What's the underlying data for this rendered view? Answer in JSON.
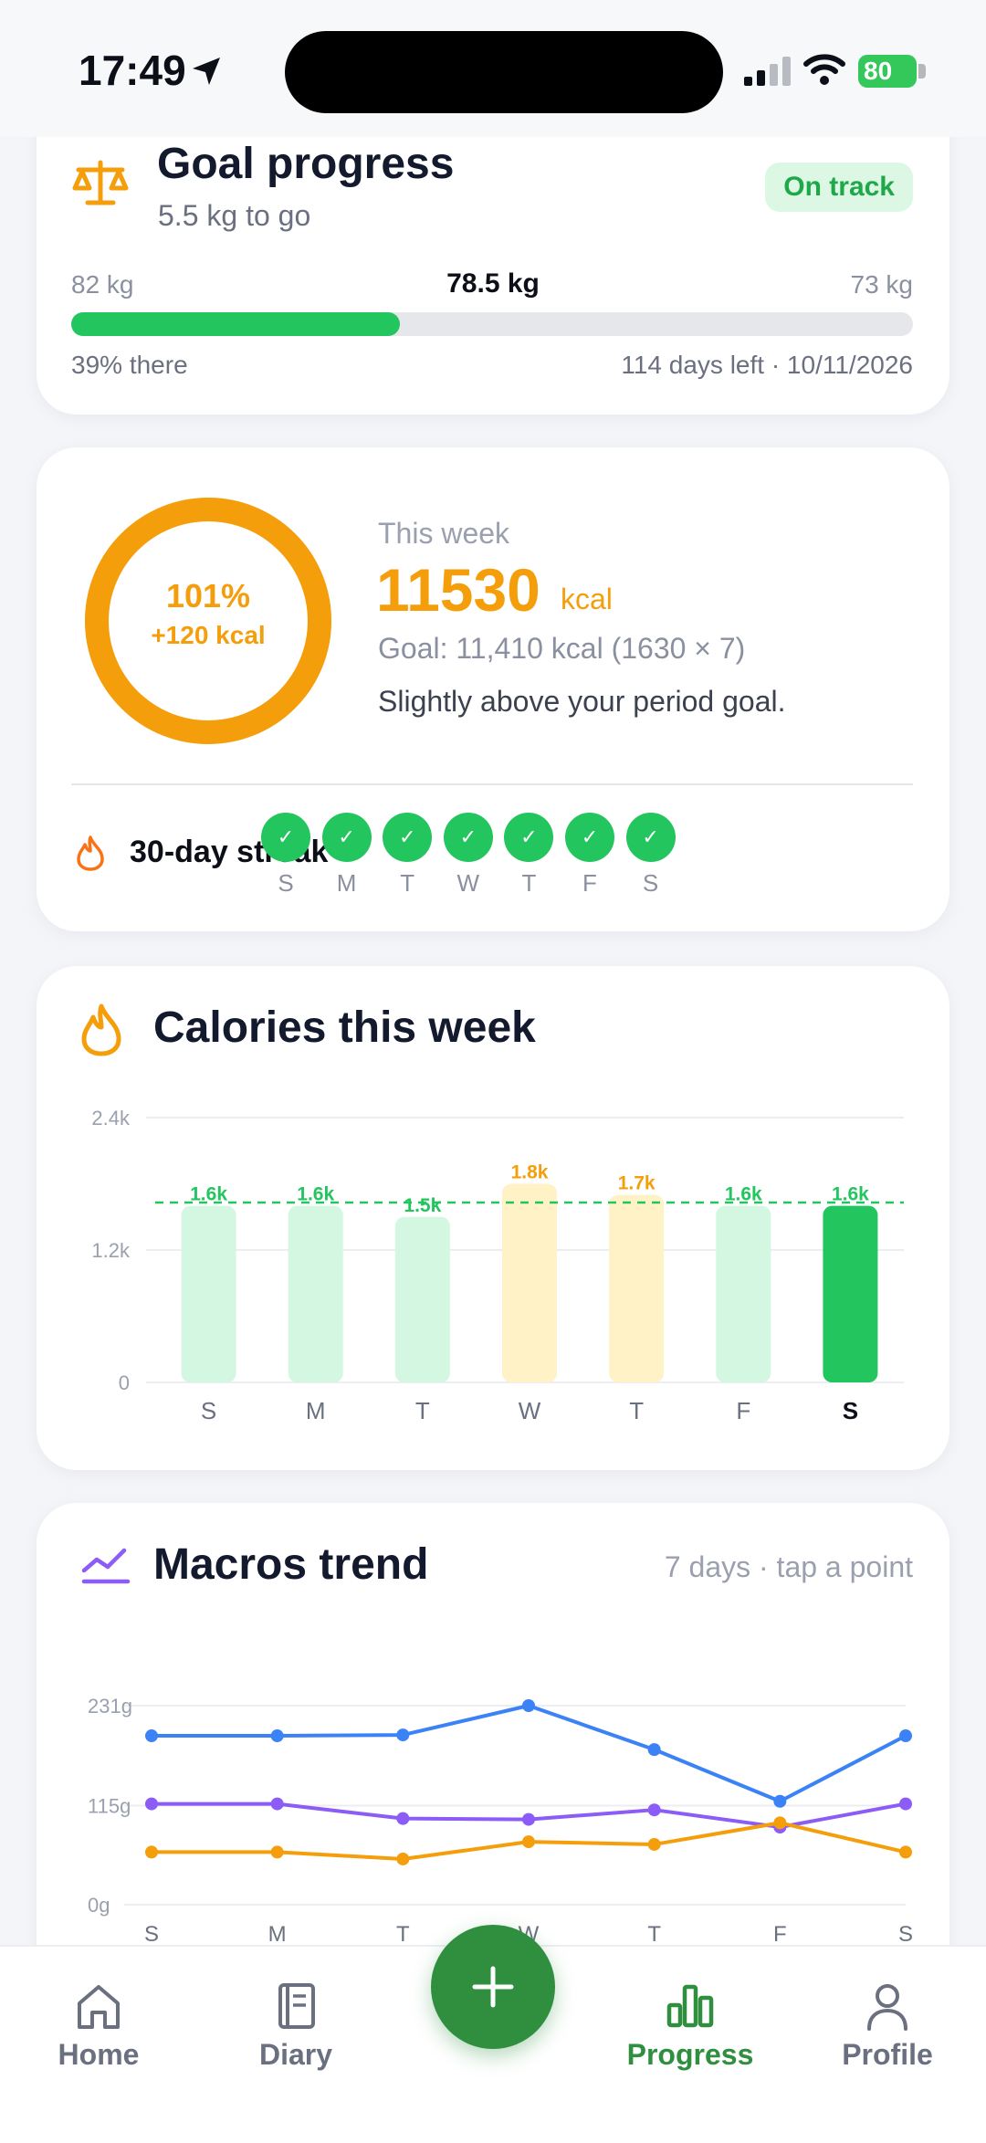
{
  "status": {
    "time": "17:49",
    "battery": "80"
  },
  "goal": {
    "title": "Goal progress",
    "subtitle": "5.5 kg to go",
    "badge": "On track",
    "start_weight": "82 kg",
    "current_weight": "78.5 kg",
    "goal_weight": "73 kg",
    "progress_fraction": 0.39,
    "percent_text": "39% there",
    "days_left_text": "114 days left · 10/11/2026"
  },
  "week": {
    "ring_percent": "101%",
    "ring_delta": "+120 kcal",
    "ring_fraction": 1.0,
    "label": "This week",
    "kcal": "11530",
    "unit": "kcal",
    "goal_text": "Goal: 11,410 kcal (1630 × 7)",
    "message": "Slightly above your period goal.",
    "streak_label": "30-day streak",
    "streak_days": [
      "S",
      "M",
      "T",
      "W",
      "T",
      "F",
      "S"
    ],
    "check": "✓"
  },
  "calories_card": {
    "title": "Calories this week"
  },
  "macros_card": {
    "title": "Macros trend",
    "hint": "7 days · tap a point"
  },
  "chart_data": [
    {
      "type": "bar",
      "title": "Calories this week",
      "categories": [
        "S",
        "M",
        "T",
        "W",
        "T",
        "F",
        "S"
      ],
      "values": [
        1600,
        1600,
        1500,
        1800,
        1700,
        1600,
        1600
      ],
      "data_labels": [
        "1.6k",
        "1.6k",
        "1.5k",
        "1.8k",
        "1.7k",
        "1.6k",
        "1.6k"
      ],
      "goal_line": 1630,
      "ylim": [
        0,
        2400
      ],
      "yticks": [
        "0",
        "1.2k",
        "2.4k"
      ],
      "ytick_values": [
        0,
        1200,
        2400
      ],
      "highlight_index": 6,
      "colors": {
        "under": "#d3f7e1",
        "over": "#fef2c6",
        "today": "#22c55e",
        "label_under": "#22c55e",
        "label_over": "#f59e0b",
        "goal": "#22c55e"
      }
    },
    {
      "type": "line",
      "title": "Macros trend",
      "categories": [
        "S",
        "M",
        "T",
        "W",
        "T",
        "F",
        "S"
      ],
      "ylim": [
        0,
        231
      ],
      "yticks": [
        "0g",
        "115g",
        "231g"
      ],
      "ytick_values": [
        0,
        115,
        231
      ],
      "series": [
        {
          "color": "#3b82f6",
          "values": [
            196,
            196,
            197,
            231,
            180,
            120,
            196
          ]
        },
        {
          "color": "#8b5cf6",
          "values": [
            117,
            117,
            100,
            99,
            110,
            90,
            117
          ]
        },
        {
          "color": "#f59e0b",
          "values": [
            61,
            61,
            53,
            73,
            70,
            95,
            61
          ]
        }
      ]
    }
  ],
  "tabs": [
    {
      "label": "Home",
      "icon": "home-icon"
    },
    {
      "label": "Diary",
      "icon": "diary-icon"
    },
    {
      "label": "Progress",
      "icon": "progress-icon"
    },
    {
      "label": "Profile",
      "icon": "profile-icon"
    }
  ]
}
